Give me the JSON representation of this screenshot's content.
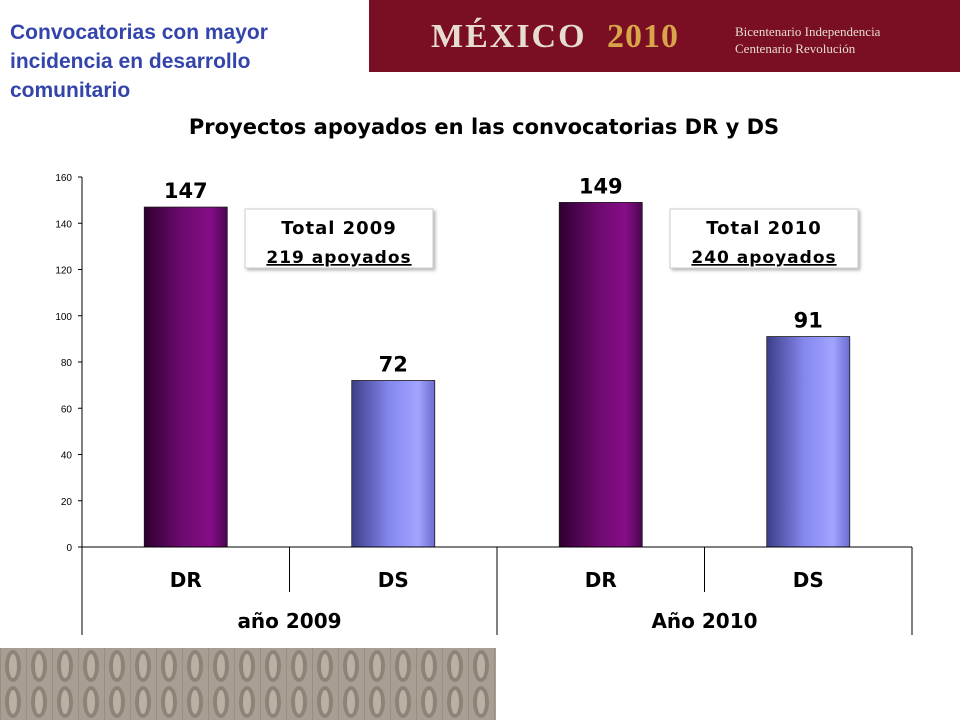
{
  "slide": {
    "title": "Convocatorias con mayor incidencia en desarrollo comunitario"
  },
  "banner": {
    "word": "MÉXICO",
    "year": "2010",
    "line1": "Bicentenario Independencia",
    "line2": "Centenario Revolución",
    "background": "#7a0e22"
  },
  "chart_data": {
    "type": "bar",
    "title": "Proyectos apoyados en las convocatorias DR y DS",
    "categories": [
      "DR",
      "DS",
      "DR",
      "DS"
    ],
    "groups": [
      "año 2009",
      "Año 2010"
    ],
    "values": [
      147,
      72,
      149,
      91
    ],
    "bar_labels": [
      "147",
      "72",
      "149",
      "91"
    ],
    "bar_colors": [
      "#7a0a78",
      "#9a9cff",
      "#7a0a78",
      "#9a9cff"
    ],
    "ylim": [
      0,
      160
    ],
    "yticks": [
      "0",
      "20",
      "40",
      "60",
      "80",
      "100",
      "120",
      "140",
      "160"
    ],
    "xlabel": "",
    "ylabel": "",
    "grid": false,
    "annotations": [
      {
        "line1": "Total 2009",
        "line2": "219 apoyados"
      },
      {
        "line1": "Total 2010",
        "line2": "240 apoyados"
      }
    ]
  }
}
